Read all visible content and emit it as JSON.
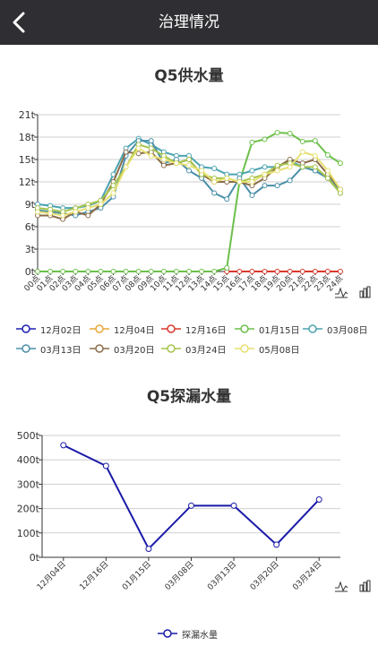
{
  "header": {
    "title": "治理情况"
  },
  "charts": [
    {
      "title": "Q5供水量",
      "chart_data": {
        "type": "line",
        "x": [
          "00点",
          "01点",
          "02点",
          "03点",
          "04点",
          "05点",
          "06点",
          "07点",
          "08点",
          "09点",
          "10点",
          "11点",
          "12点",
          "13点",
          "14点",
          "15点",
          "16点",
          "17点",
          "18点",
          "19点",
          "20点",
          "21点",
          "22点",
          "23点",
          "24点"
        ],
        "yticks": [
          "0t",
          "3t",
          "6t",
          "9t",
          "12t",
          "15t",
          "18t",
          "21t"
        ],
        "ylim": [
          0,
          21
        ],
        "grid": true,
        "legend_position": "bottom",
        "series": [
          {
            "name": "12月02日",
            "color": "#1f1fb4",
            "values": [
              null,
              null,
              null,
              null,
              null,
              null,
              null,
              null,
              null,
              null,
              null,
              null,
              null,
              null,
              null,
              null,
              null,
              null,
              null,
              null,
              null,
              null,
              null,
              null,
              null
            ]
          },
          {
            "name": "12月04日",
            "color": "#e8a838",
            "values": [
              null,
              null,
              null,
              null,
              null,
              null,
              null,
              null,
              null,
              null,
              null,
              null,
              null,
              null,
              null,
              null,
              null,
              null,
              null,
              null,
              null,
              null,
              null,
              null,
              null
            ]
          },
          {
            "name": "12月16日",
            "color": "#d9382c",
            "values": [
              null,
              null,
              null,
              null,
              null,
              null,
              null,
              null,
              null,
              null,
              null,
              null,
              null,
              null,
              null,
              0,
              0,
              0,
              0,
              0,
              0,
              0,
              0,
              0,
              0
            ]
          },
          {
            "name": "01月15日",
            "color": "#6cc04a",
            "values": [
              0,
              0,
              0,
              0,
              0,
              0,
              0,
              0,
              0,
              0,
              0,
              0,
              0,
              0,
              0,
              0.5,
              12,
              17.3,
              17.7,
              18.6,
              18.5,
              17.4,
              17.5,
              15.6,
              14.5
            ]
          },
          {
            "name": "03月08日",
            "color": "#4aa3b0",
            "values": [
              9,
              8.8,
              8.5,
              8.5,
              8.8,
              9.5,
              13,
              16.5,
              17.8,
              17,
              16,
              15.5,
              15.5,
              14,
              13.8,
              13,
              13,
              13.5,
              14,
              14,
              14.8,
              14,
              13.5,
              12.5,
              11
            ]
          },
          {
            "name": "03月13日",
            "color": "#4a8fa8",
            "values": [
              8.2,
              8,
              7.8,
              7.5,
              8,
              8.5,
              10,
              15.5,
              17.5,
              17.5,
              14.5,
              15,
              13.5,
              12.5,
              10.5,
              9.7,
              12.5,
              10.2,
              11.5,
              11.5,
              12.2,
              14,
              13.5,
              12.5,
              10.5
            ]
          },
          {
            "name": "03月20日",
            "color": "#8b6c4a",
            "values": [
              7.5,
              7.5,
              7,
              8,
              7.5,
              9,
              12,
              16,
              15.8,
              16,
              14.2,
              14.5,
              15,
              13,
              12,
              12,
              12,
              11.5,
              12.5,
              14,
              15,
              14.5,
              15,
              13,
              11
            ]
          },
          {
            "name": "03月24日",
            "color": "#a6c44a",
            "values": [
              8.5,
              8.3,
              8,
              8.5,
              9,
              9.5,
              11.5,
              14,
              17,
              16.5,
              15.5,
              14.5,
              15,
              13,
              12.5,
              12.5,
              12,
              12.5,
              13,
              14.2,
              14.5,
              14,
              14,
              12.5,
              10.5
            ]
          },
          {
            "name": "05月08日",
            "color": "#e6e070",
            "values": [
              8,
              7.8,
              7.5,
              8,
              8.5,
              9,
              10.5,
              14,
              16.5,
              15.5,
              15,
              14.5,
              14.2,
              13.5,
              12,
              12.5,
              12,
              12,
              13,
              13.5,
              14,
              16,
              15.5,
              13.5,
              11
            ]
          }
        ]
      }
    },
    {
      "title": "Q5探漏水量",
      "chart_data": {
        "type": "line",
        "x": [
          "12月04日",
          "12月16日",
          "01月15日",
          "03月08日",
          "03月13日",
          "03月20日",
          "03月24日"
        ],
        "yticks": [
          "0t",
          "100t",
          "200t",
          "300t",
          "400t",
          "500t"
        ],
        "ylim": [
          0,
          500
        ],
        "grid": true,
        "legend_position": "bottom",
        "series": [
          {
            "name": "探漏水量",
            "color": "#1a1aa8",
            "values": [
              460,
              375,
              35,
              212,
              212,
              52,
              237
            ]
          }
        ]
      }
    }
  ]
}
